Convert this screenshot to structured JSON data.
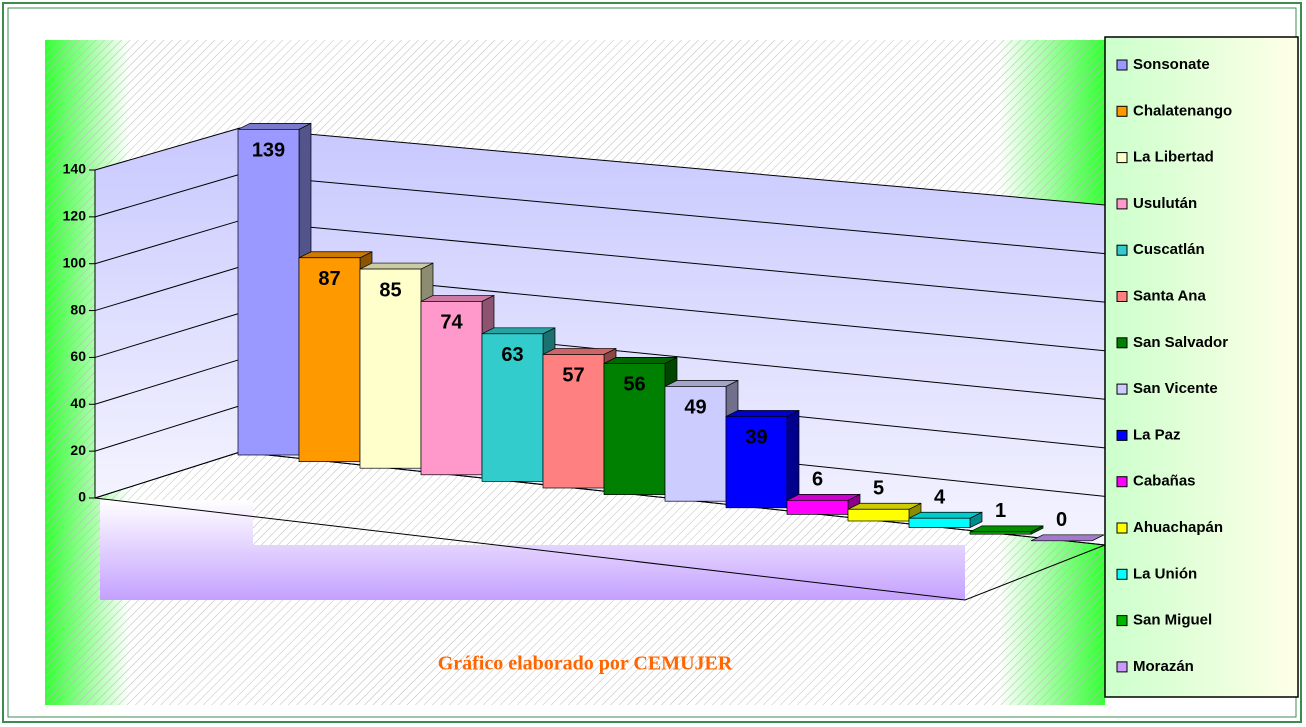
{
  "chart_data": {
    "type": "bar3d",
    "annotation": "Gráfico elaborado por CEMUJER",
    "categories": [
      "Sonsonate",
      "Chalatenango",
      "La Libertad",
      "Usulután",
      "Cuscatlán",
      "Santa Ana",
      "San Salvador",
      "San Vicente",
      "La Paz",
      "Cabañas",
      "Ahuachapán",
      "La Unión",
      "San Miguel",
      "Morazán"
    ],
    "values": [
      139,
      87,
      85,
      74,
      63,
      57,
      56,
      49,
      39,
      6,
      5,
      4,
      1,
      0
    ],
    "colors": [
      "#9999ff",
      "#ff9900",
      "#ffffcc",
      "#ff99cc",
      "#33cccc",
      "#ff8080",
      "#008000",
      "#ccccff",
      "#0000ff",
      "#ff00ff",
      "#ffff00",
      "#00ffff",
      "#00b400",
      "#cc99ff"
    ],
    "ylim": [
      0,
      140
    ],
    "yticks": [
      0,
      20,
      40,
      60,
      80,
      100,
      120,
      140
    ],
    "grid": true,
    "legend": "right"
  }
}
